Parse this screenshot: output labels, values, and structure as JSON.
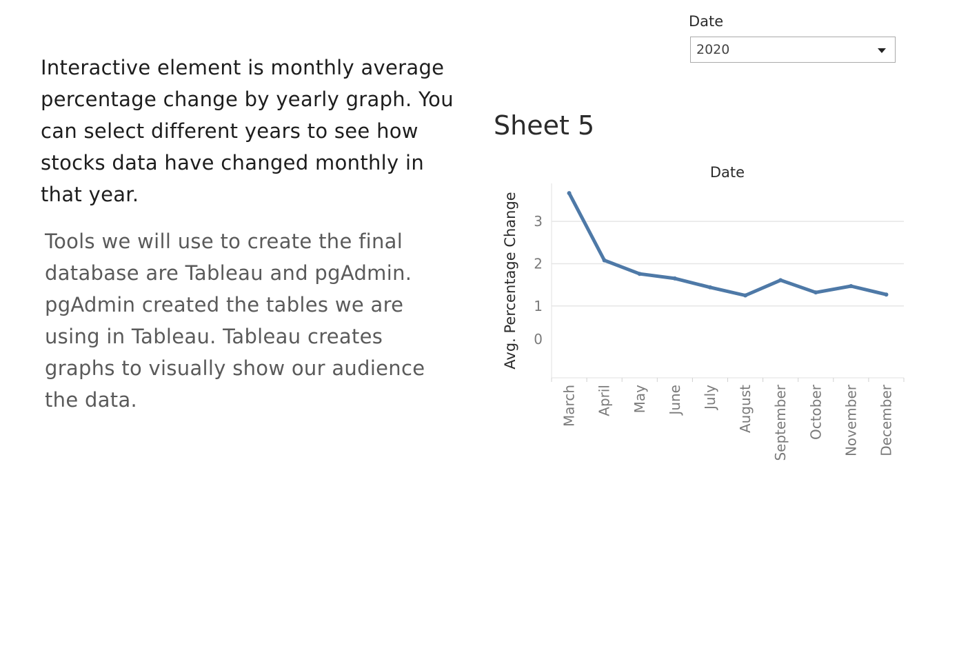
{
  "intro_text": "Interactive element is monthly average percentage change by yearly graph. You can select different years to see how stocks data have changed monthly in that year.",
  "tools_text": "Tools we will use to create the final database are Tableau and pgAdmin. pgAdmin created the tables we are using in Tableau. Tableau creates graphs to visually show our audience the data.",
  "filter": {
    "label": "Date",
    "selected_value": "2020"
  },
  "sheet": {
    "title": "Sheet 5"
  },
  "chart_data": {
    "type": "line",
    "xlabel": "Date",
    "ylabel": "Avg. Percentage Change",
    "categories": [
      "March",
      "April",
      "May",
      "June",
      "July",
      "August",
      "September",
      "October",
      "November",
      "December"
    ],
    "values": [
      3.67,
      2.08,
      1.76,
      1.65,
      1.44,
      1.25,
      1.61,
      1.32,
      1.47,
      1.27
    ],
    "yticks": [
      0,
      1,
      2,
      3
    ],
    "ylim": [
      -0.7,
      3.9
    ],
    "grid": true,
    "line_color": "#4e79a7"
  }
}
